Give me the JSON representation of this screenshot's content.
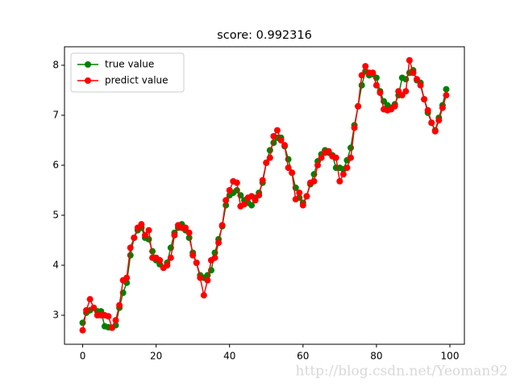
{
  "chart_data": {
    "type": "line",
    "title": "score: 0.992316",
    "x": [
      0,
      1,
      2,
      3,
      4,
      5,
      6,
      7,
      8,
      9,
      10,
      11,
      12,
      13,
      14,
      15,
      16,
      17,
      18,
      19,
      20,
      21,
      22,
      23,
      24,
      25,
      26,
      27,
      28,
      29,
      30,
      31,
      32,
      33,
      34,
      35,
      36,
      37,
      38,
      39,
      40,
      41,
      42,
      43,
      44,
      45,
      46,
      47,
      48,
      49,
      50,
      51,
      52,
      53,
      54,
      55,
      56,
      57,
      58,
      59,
      60,
      61,
      62,
      63,
      64,
      65,
      66,
      67,
      68,
      69,
      70,
      71,
      72,
      73,
      74,
      75,
      76,
      77,
      78,
      79,
      80,
      81,
      82,
      83,
      84,
      85,
      86,
      87,
      88,
      89,
      90,
      91,
      92,
      93,
      94,
      95,
      96,
      97,
      98,
      99
    ],
    "series": [
      {
        "name": "true value",
        "color": "#008000",
        "values": [
          2.85,
          3.05,
          3.1,
          3.15,
          3.08,
          3.08,
          2.78,
          2.76,
          2.75,
          2.8,
          3.15,
          3.45,
          3.65,
          4.2,
          4.55,
          4.7,
          4.75,
          4.55,
          4.52,
          4.28,
          4.1,
          4.02,
          3.95,
          4.05,
          4.35,
          4.65,
          4.75,
          4.82,
          4.7,
          4.55,
          4.25,
          4.05,
          3.8,
          3.75,
          3.8,
          3.9,
          4.25,
          4.52,
          4.78,
          5.2,
          5.4,
          5.45,
          5.5,
          5.4,
          5.3,
          5.25,
          5.2,
          5.35,
          5.45,
          5.65,
          6.05,
          6.3,
          6.45,
          6.55,
          6.55,
          6.38,
          6.12,
          5.85,
          5.55,
          5.35,
          5.25,
          5.38,
          5.62,
          5.82,
          6.08,
          6.22,
          6.3,
          6.25,
          6.2,
          5.95,
          5.95,
          5.92,
          6.1,
          6.35,
          6.8,
          7.18,
          7.6,
          7.88,
          7.8,
          7.82,
          7.75,
          7.48,
          7.28,
          7.2,
          7.15,
          7.22,
          7.4,
          7.75,
          7.72,
          7.85,
          7.9,
          7.7,
          7.65,
          7.32,
          7.05,
          6.85,
          6.7,
          6.95,
          7.2,
          7.52
        ]
      },
      {
        "name": "predict value",
        "color": "#ff0000",
        "values": [
          2.7,
          3.1,
          3.32,
          3.15,
          3.0,
          3.0,
          3.0,
          2.98,
          2.75,
          2.9,
          3.2,
          3.7,
          3.75,
          4.35,
          4.55,
          4.75,
          4.82,
          4.6,
          4.7,
          4.15,
          4.15,
          4.1,
          3.95,
          4.0,
          4.15,
          4.6,
          4.8,
          4.75,
          4.75,
          4.65,
          4.2,
          4.05,
          3.75,
          3.4,
          3.7,
          4.1,
          4.15,
          4.45,
          4.8,
          5.3,
          5.5,
          5.68,
          5.65,
          5.18,
          5.22,
          5.35,
          5.38,
          5.3,
          5.4,
          5.7,
          6.05,
          6.15,
          6.58,
          6.7,
          6.5,
          6.4,
          5.95,
          5.85,
          5.32,
          5.45,
          5.2,
          5.38,
          5.65,
          5.68,
          6.0,
          6.15,
          6.25,
          6.28,
          6.18,
          6.15,
          5.68,
          5.82,
          5.95,
          6.15,
          6.75,
          7.18,
          7.8,
          7.98,
          7.85,
          7.85,
          7.6,
          7.45,
          7.12,
          7.1,
          7.12,
          7.18,
          7.48,
          7.4,
          7.48,
          8.1,
          7.85,
          7.72,
          7.6,
          7.32,
          7.1,
          6.85,
          6.68,
          6.9,
          7.15,
          7.4
        ]
      }
    ],
    "xlim": [
      -4.95,
      103.95
    ],
    "xticks": [
      0,
      20,
      40,
      60,
      80,
      100
    ],
    "ylim": [
      2.42,
      8.37
    ],
    "yticks": [
      3,
      4,
      5,
      6,
      7,
      8
    ],
    "legend": "upper left",
    "watermark": "http://blog.csdn.net/Yeoman92"
  }
}
